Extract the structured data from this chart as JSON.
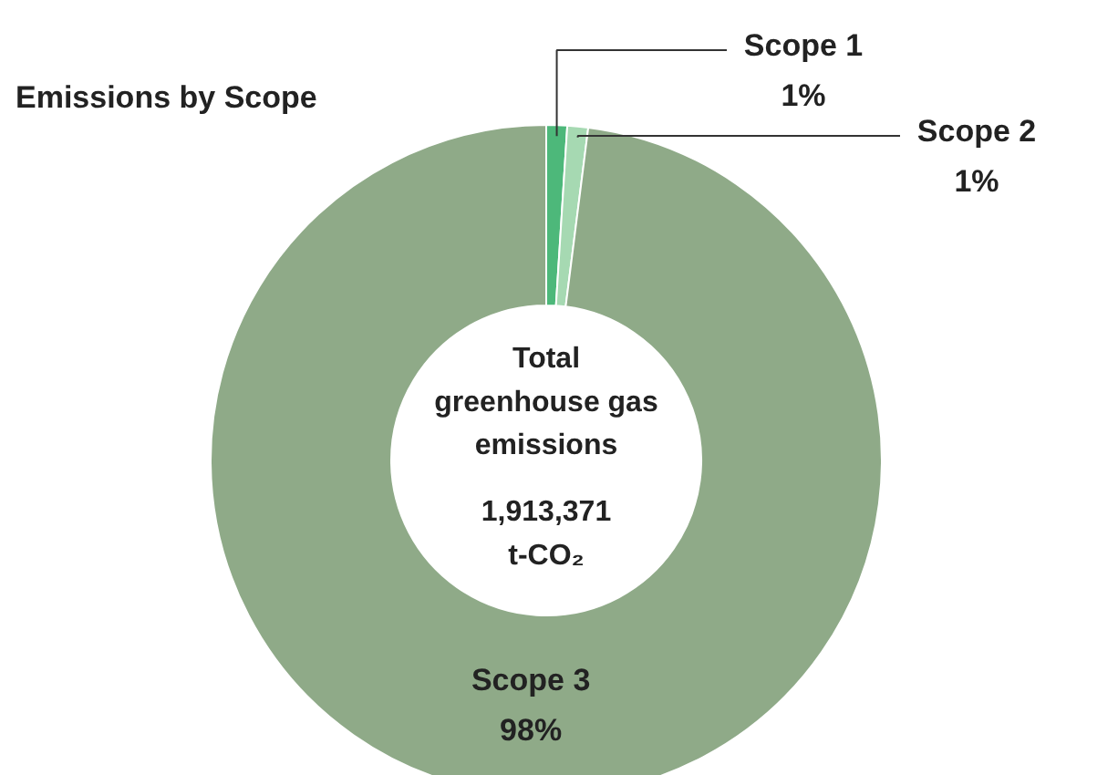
{
  "chart_data": {
    "type": "donut",
    "title": "Emissions by Scope",
    "categories": [
      "Scope 1",
      "Scope 2",
      "Scope 3"
    ],
    "values": [
      1,
      1,
      98
    ],
    "value_labels": [
      "1%",
      "1%",
      "98%"
    ],
    "colors": [
      "#4db87a",
      "#a6d9b2",
      "#8faa88"
    ],
    "annotations": [
      "Total\ngreenhouse gas\nemissions",
      "1,913,371\nt-CO₂"
    ]
  }
}
